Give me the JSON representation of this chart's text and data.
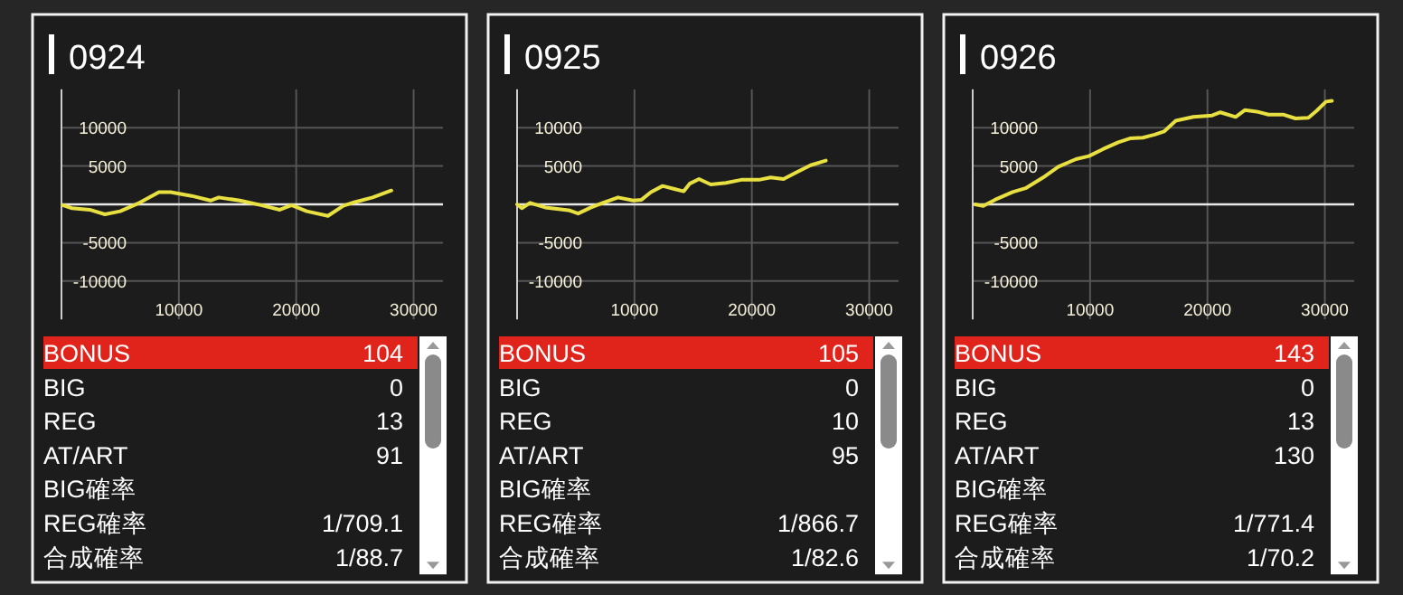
{
  "chart_data": [
    {
      "type": "line",
      "title": "0924",
      "xlim": [
        0,
        32500
      ],
      "ylim": [
        -15000,
        15000
      ],
      "xticks": [
        10000,
        20000,
        30000
      ],
      "yticks": [
        -10000,
        -5000,
        5000,
        10000
      ],
      "grid": true,
      "ref_lines": [
        {
          "axis": "y",
          "value": 0,
          "color": "#e8e8e8"
        }
      ],
      "series": [
        {
          "color": "#e8e040",
          "x": [
            100,
            900,
            2400,
            3700,
            5000,
            6500,
            8300,
            9300,
            11100,
            12700,
            13400,
            15200,
            17000,
            18600,
            19600,
            20900,
            22700,
            24000,
            25000,
            26500,
            28100
          ],
          "values": [
            -100,
            -500,
            -700,
            -1300,
            -900,
            100,
            1600,
            1600,
            1100,
            500,
            900,
            500,
            -100,
            -700,
            -100,
            -900,
            -1500,
            -200,
            300,
            900,
            1800
          ]
        }
      ]
    },
    {
      "type": "line",
      "title": "0925",
      "xlim": [
        0,
        32500
      ],
      "ylim": [
        -15000,
        15000
      ],
      "xticks": [
        10000,
        20000,
        30000
      ],
      "yticks": [
        -10000,
        -5000,
        5000,
        10000
      ],
      "grid": true,
      "ref_lines": [
        {
          "axis": "y",
          "value": 0,
          "color": "#e8e8e8"
        }
      ],
      "series": [
        {
          "color": "#e8e040",
          "x": [
            0,
            400,
            1100,
            2400,
            3400,
            4500,
            5200,
            6300,
            7300,
            8600,
            9900,
            10600,
            11400,
            12400,
            13400,
            14200,
            14700,
            15500,
            16500,
            17800,
            19100,
            20600,
            21600,
            22700,
            23700,
            25000,
            26300
          ],
          "values": [
            0,
            -500,
            200,
            -400,
            -600,
            -800,
            -1200,
            -400,
            200,
            900,
            500,
            600,
            1600,
            2400,
            2000,
            1700,
            2700,
            3300,
            2600,
            2800,
            3200,
            3200,
            3500,
            3300,
            4100,
            5100,
            5700
          ]
        }
      ]
    },
    {
      "type": "line",
      "title": "0926",
      "xlim": [
        0,
        32500
      ],
      "ylim": [
        -15000,
        15000
      ],
      "xticks": [
        10000,
        20000,
        30000
      ],
      "yticks": [
        -10000,
        -5000,
        5000,
        10000
      ],
      "grid": true,
      "ref_lines": [
        {
          "axis": "y",
          "value": 0,
          "color": "#e8e8e8"
        }
      ],
      "series": [
        {
          "color": "#e8e040",
          "x": [
            200,
            900,
            1900,
            3400,
            4500,
            6000,
            7300,
            8800,
            9900,
            11100,
            12400,
            13400,
            14500,
            15500,
            16300,
            17300,
            18800,
            20400,
            21100,
            22400,
            23200,
            24200,
            25200,
            26500,
            27500,
            28600,
            29300,
            30100,
            30600
          ],
          "values": [
            0,
            -200,
            600,
            1600,
            2100,
            3500,
            4900,
            5900,
            6300,
            7200,
            8100,
            8600,
            8700,
            9100,
            9500,
            10900,
            11400,
            11600,
            12000,
            11400,
            12300,
            12100,
            11700,
            11700,
            11200,
            11300,
            12200,
            13400,
            13500
          ]
        }
      ]
    },
    {
      "type": "other",
      "categories": [
        "BONUS",
        "BIG",
        "REG",
        "AT/ART",
        "BIG確率",
        "REG確率",
        "合成確率"
      ],
      "value_labels": [
        "104",
        "0",
        "13",
        "91",
        null,
        "1/709.1",
        "1/88.7"
      ]
    },
    {
      "type": "other",
      "categories": [
        "BONUS",
        "BIG",
        "REG",
        "AT/ART",
        "BIG確率",
        "REG確率",
        "合成確率"
      ],
      "value_labels": [
        "105",
        "0",
        "10",
        "95",
        null,
        "1/866.7",
        "1/82.6"
      ]
    },
    {
      "type": "other",
      "categories": [
        "BONUS",
        "BIG",
        "REG",
        "AT/ART",
        "BIG確率",
        "REG確率",
        "合成確率"
      ],
      "value_labels": [
        "143",
        "0",
        "13",
        "130",
        null,
        "1/771.4",
        "1/70.2"
      ]
    }
  ]
}
